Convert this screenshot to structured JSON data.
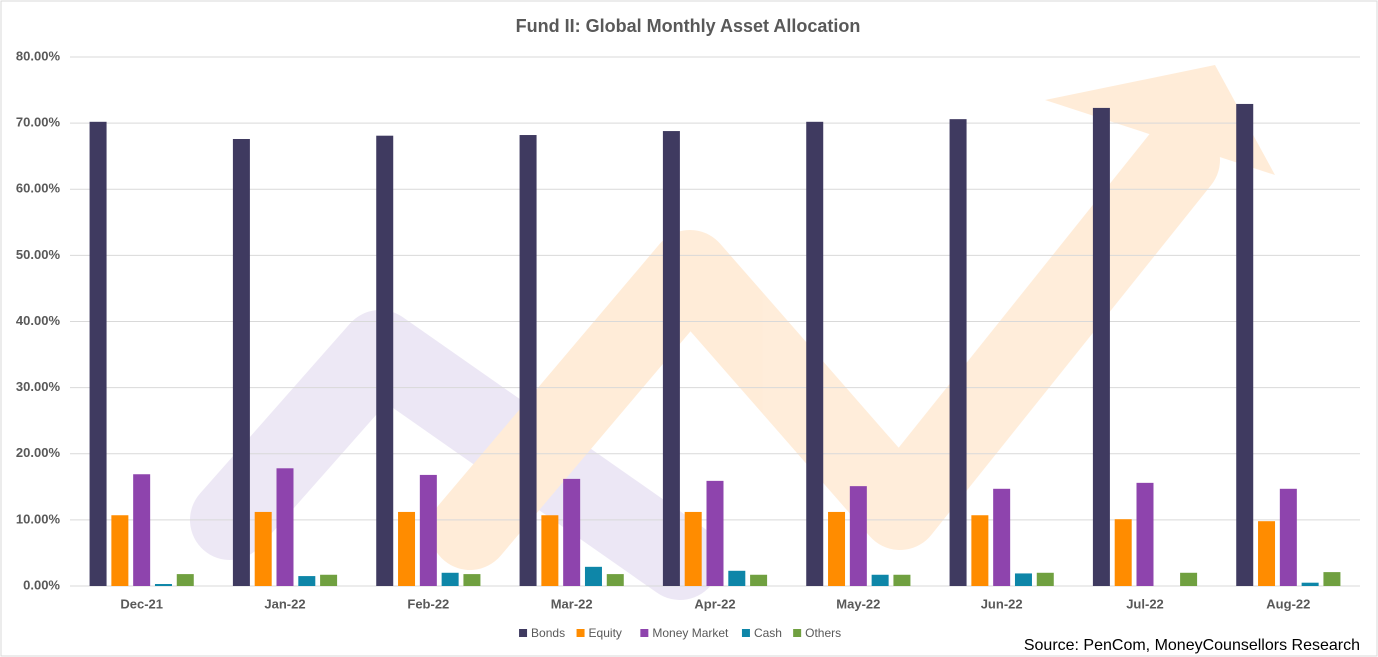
{
  "chart_data": {
    "type": "bar",
    "title": "Fund II: Global Monthly Asset Allocation",
    "source": "Source: PenCom, MoneyCounsellors Research",
    "categories": [
      "Dec-21",
      "Jan-22",
      "Feb-22",
      "Mar-22",
      "Apr-22",
      "May-22",
      "Jun-22",
      "Jul-22",
      "Aug-22"
    ],
    "series": [
      {
        "name": "Bonds",
        "color": "#3f3a60",
        "values": [
          70.2,
          67.6,
          68.1,
          68.2,
          68.8,
          70.2,
          70.6,
          72.3,
          72.9
        ]
      },
      {
        "name": "Equity",
        "color": "#ff8c00",
        "values": [
          10.7,
          11.2,
          11.2,
          10.7,
          11.2,
          11.2,
          10.7,
          10.1,
          9.8
        ]
      },
      {
        "name": "Money Market",
        "color": "#8e44ad",
        "values": [
          16.9,
          17.8,
          16.8,
          16.2,
          15.9,
          15.1,
          14.7,
          15.6,
          14.7
        ]
      },
      {
        "name": "Cash",
        "color": "#0e86a8",
        "values": [
          0.3,
          1.5,
          2.0,
          2.9,
          2.3,
          1.7,
          1.9,
          0,
          0.5
        ]
      },
      {
        "name": "Others",
        "color": "#70a040",
        "values": [
          1.8,
          1.7,
          1.8,
          1.8,
          1.7,
          1.7,
          2.0,
          2.0,
          2.1
        ]
      }
    ],
    "ylim": [
      0,
      80
    ],
    "yticks": [
      {
        "value": 0,
        "label": "0.00%"
      },
      {
        "value": 10,
        "label": "10.00%"
      },
      {
        "value": 20,
        "label": "20.00%"
      },
      {
        "value": 30,
        "label": "30.00%"
      },
      {
        "value": 40,
        "label": "40.00%"
      },
      {
        "value": 50,
        "label": "50.00%"
      },
      {
        "value": 60,
        "label": "60.00%"
      },
      {
        "value": 70,
        "label": "70.00%"
      },
      {
        "value": 80,
        "label": "80.00%"
      }
    ],
    "grid": true,
    "legend": "bottom"
  }
}
